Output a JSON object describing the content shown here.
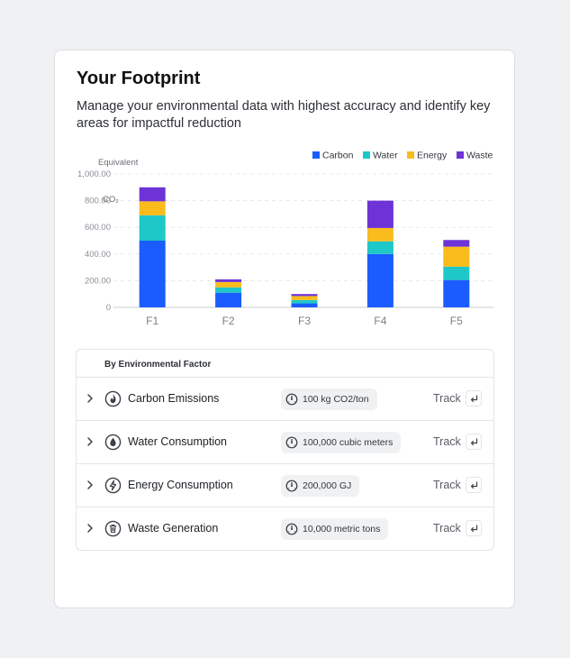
{
  "header": {
    "title": "Your Footprint",
    "subtitle": "Manage your environmental data with highest accuracy and identify key areas for impactful reduction"
  },
  "chart_data": {
    "type": "bar",
    "stacked": true,
    "ylabel_line1": "CO₂",
    "ylabel_line2": "Equivalent",
    "categories": [
      "F1",
      "F2",
      "F3",
      "F4",
      "F5"
    ],
    "ylim": [
      0,
      1000
    ],
    "yticks": [
      "0",
      "200.00",
      "400.00",
      "600.00",
      "800.00",
      "1,000.00"
    ],
    "ytick_values": [
      0,
      200,
      400,
      600,
      800,
      1000
    ],
    "grid": true,
    "legend_position": "top-right",
    "series": [
      {
        "name": "Carbon",
        "color": "#1a5cff",
        "values": [
          500,
          110,
          30,
          400,
          205
        ]
      },
      {
        "name": "Water",
        "color": "#1ec8c8",
        "values": [
          190,
          40,
          25,
          95,
          100
        ]
      },
      {
        "name": "Energy",
        "color": "#f9bc1c",
        "values": [
          105,
          40,
          30,
          100,
          150
        ]
      },
      {
        "name": "Waste",
        "color": "#6e33d6",
        "values": [
          105,
          20,
          15,
          205,
          50
        ]
      }
    ]
  },
  "factors": {
    "heading": "By Environmental Factor",
    "track_label": "Track",
    "rows": [
      {
        "label": "Carbon Emissions",
        "value": "100 kg CO2/ton",
        "icon": "flame-icon"
      },
      {
        "label": "Water Consumption",
        "value": "100,000 cubic meters",
        "icon": "droplet-icon"
      },
      {
        "label": "Energy Consumption",
        "value": "200,000 GJ",
        "icon": "lightning-icon"
      },
      {
        "label": "Waste Generation",
        "value": "10,000 metric tons",
        "icon": "trash-icon"
      }
    ]
  }
}
